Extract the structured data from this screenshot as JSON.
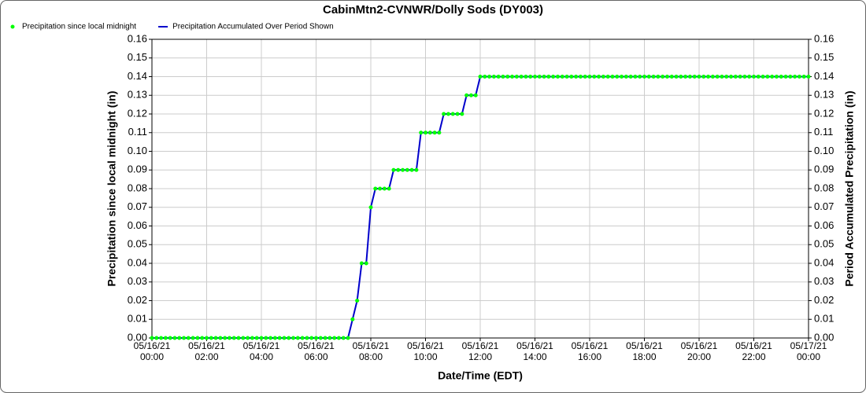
{
  "chart_data": {
    "type": "line",
    "title": "CabinMtn2-CVNWR/Dolly Sods (DY003)",
    "xlabel": "Date/Time (EDT)",
    "ylabel": "Precipitation since local midnight (in)",
    "y2label": "Period Accumulated Precipitation (in)",
    "xlim": [
      "05/16/21 00:00",
      "05/17/21 00:00"
    ],
    "xticks": [
      {
        "value": "05/16/21 00:00",
        "label": "05/16/21\n00:00"
      },
      {
        "value": "05/16/21 02:00",
        "label": "05/16/21\n02:00"
      },
      {
        "value": "05/16/21 04:00",
        "label": "05/16/21\n04:00"
      },
      {
        "value": "05/16/21 06:00",
        "label": "05/16/21\n06:00"
      },
      {
        "value": "05/16/21 08:00",
        "label": "05/16/21\n08:00"
      },
      {
        "value": "05/16/21 10:00",
        "label": "05/16/21\n10:00"
      },
      {
        "value": "05/16/21 12:00",
        "label": "05/16/21\n12:00"
      },
      {
        "value": "05/16/21 14:00",
        "label": "05/16/21\n14:00"
      },
      {
        "value": "05/16/21 16:00",
        "label": "05/16/21\n16:00"
      },
      {
        "value": "05/16/21 18:00",
        "label": "05/16/21\n18:00"
      },
      {
        "value": "05/16/21 20:00",
        "label": "05/16/21\n20:00"
      },
      {
        "value": "05/16/21 22:00",
        "label": "05/16/21\n22:00"
      },
      {
        "value": "05/17/21 00:00",
        "label": "05/17/21\n00:00"
      }
    ],
    "ylim": [
      0,
      0.16
    ],
    "yticks": [
      {
        "value": 0,
        "label": "0.00"
      },
      {
        "value": 0.01,
        "label": "0.01"
      },
      {
        "value": 0.02,
        "label": "0.02"
      },
      {
        "value": 0.03,
        "label": "0.03"
      },
      {
        "value": 0.04,
        "label": "0.04"
      },
      {
        "value": 0.05,
        "label": "0.05"
      },
      {
        "value": 0.06,
        "label": "0.06"
      },
      {
        "value": 0.07,
        "label": "0.07"
      },
      {
        "value": 0.08,
        "label": "0.08"
      },
      {
        "value": 0.09,
        "label": "0.09"
      },
      {
        "value": 0.1,
        "label": "0.10"
      },
      {
        "value": 0.11,
        "label": "0.11"
      },
      {
        "value": 0.12,
        "label": "0.12"
      },
      {
        "value": 0.13,
        "label": "0.13"
      },
      {
        "value": 0.14,
        "label": "0.14"
      },
      {
        "value": 0.15,
        "label": "0.15"
      },
      {
        "value": 0.16,
        "label": "0.16"
      }
    ],
    "y2lim": [
      0,
      0.16
    ],
    "y2ticks": [
      {
        "value": 0,
        "label": "0.00"
      },
      {
        "value": 0.01,
        "label": "0.01"
      },
      {
        "value": 0.02,
        "label": "0.02"
      },
      {
        "value": 0.03,
        "label": "0.03"
      },
      {
        "value": 0.04,
        "label": "0.04"
      },
      {
        "value": 0.05,
        "label": "0.05"
      },
      {
        "value": 0.06,
        "label": "0.06"
      },
      {
        "value": 0.07,
        "label": "0.07"
      },
      {
        "value": 0.08,
        "label": "0.08"
      },
      {
        "value": 0.09,
        "label": "0.09"
      },
      {
        "value": 0.1,
        "label": "0.10"
      },
      {
        "value": 0.11,
        "label": "0.11"
      },
      {
        "value": 0.12,
        "label": "0.12"
      },
      {
        "value": 0.13,
        "label": "0.13"
      },
      {
        "value": 0.14,
        "label": "0.14"
      },
      {
        "value": 0.15,
        "label": "0.15"
      },
      {
        "value": 0.16,
        "label": "0.16"
      }
    ],
    "grid": true,
    "x": [
      "05/16/21 00:00",
      "05/16/21 00:10",
      "05/16/21 00:20",
      "05/16/21 00:30",
      "05/16/21 00:40",
      "05/16/21 00:50",
      "05/16/21 01:00",
      "05/16/21 01:10",
      "05/16/21 01:20",
      "05/16/21 01:30",
      "05/16/21 01:40",
      "05/16/21 01:50",
      "05/16/21 02:00",
      "05/16/21 02:10",
      "05/16/21 02:20",
      "05/16/21 02:30",
      "05/16/21 02:40",
      "05/16/21 02:50",
      "05/16/21 03:00",
      "05/16/21 03:10",
      "05/16/21 03:20",
      "05/16/21 03:30",
      "05/16/21 03:40",
      "05/16/21 03:50",
      "05/16/21 04:00",
      "05/16/21 04:10",
      "05/16/21 04:20",
      "05/16/21 04:30",
      "05/16/21 04:40",
      "05/16/21 04:50",
      "05/16/21 05:00",
      "05/16/21 05:10",
      "05/16/21 05:20",
      "05/16/21 05:30",
      "05/16/21 05:40",
      "05/16/21 05:50",
      "05/16/21 06:00",
      "05/16/21 06:10",
      "05/16/21 06:20",
      "05/16/21 06:30",
      "05/16/21 06:40",
      "05/16/21 06:50",
      "05/16/21 07:00",
      "05/16/21 07:10",
      "05/16/21 07:20",
      "05/16/21 07:30",
      "05/16/21 07:40",
      "05/16/21 07:50",
      "05/16/21 08:00",
      "05/16/21 08:10",
      "05/16/21 08:20",
      "05/16/21 08:30",
      "05/16/21 08:40",
      "05/16/21 08:50",
      "05/16/21 09:00",
      "05/16/21 09:10",
      "05/16/21 09:20",
      "05/16/21 09:30",
      "05/16/21 09:40",
      "05/16/21 09:50",
      "05/16/21 10:00",
      "05/16/21 10:10",
      "05/16/21 10:20",
      "05/16/21 10:30",
      "05/16/21 10:40",
      "05/16/21 10:50",
      "05/16/21 11:00",
      "05/16/21 11:10",
      "05/16/21 11:20",
      "05/16/21 11:30",
      "05/16/21 11:40",
      "05/16/21 11:50",
      "05/16/21 12:00",
      "05/16/21 12:10",
      "05/16/21 12:20",
      "05/16/21 12:30",
      "05/16/21 12:40",
      "05/16/21 12:50",
      "05/16/21 13:00",
      "05/16/21 13:10",
      "05/16/21 13:20",
      "05/16/21 13:30",
      "05/16/21 13:40",
      "05/16/21 13:50",
      "05/16/21 14:00",
      "05/16/21 14:10",
      "05/16/21 14:20",
      "05/16/21 14:30",
      "05/16/21 14:40",
      "05/16/21 14:50",
      "05/16/21 15:00",
      "05/16/21 15:10",
      "05/16/21 15:20",
      "05/16/21 15:30",
      "05/16/21 15:40",
      "05/16/21 15:50",
      "05/16/21 16:00",
      "05/16/21 16:10",
      "05/16/21 16:20",
      "05/16/21 16:30",
      "05/16/21 16:40",
      "05/16/21 16:50",
      "05/16/21 17:00",
      "05/16/21 17:10",
      "05/16/21 17:20",
      "05/16/21 17:30",
      "05/16/21 17:40",
      "05/16/21 17:50",
      "05/16/21 18:00",
      "05/16/21 18:10",
      "05/16/21 18:20",
      "05/16/21 18:30",
      "05/16/21 18:40",
      "05/16/21 18:50",
      "05/16/21 19:00",
      "05/16/21 19:10",
      "05/16/21 19:20",
      "05/16/21 19:30",
      "05/16/21 19:40",
      "05/16/21 19:50",
      "05/16/21 20:00",
      "05/16/21 20:10",
      "05/16/21 20:20",
      "05/16/21 20:30",
      "05/16/21 20:40",
      "05/16/21 20:50",
      "05/16/21 21:00",
      "05/16/21 21:10",
      "05/16/21 21:20",
      "05/16/21 21:30",
      "05/16/21 21:40",
      "05/16/21 21:50",
      "05/16/21 22:00",
      "05/16/21 22:10",
      "05/16/21 22:20",
      "05/16/21 22:30",
      "05/16/21 22:40",
      "05/16/21 22:50",
      "05/16/21 23:00",
      "05/16/21 23:10",
      "05/16/21 23:20",
      "05/16/21 23:30",
      "05/16/21 23:40",
      "05/16/21 23:50",
      "05/17/21 00:00"
    ],
    "series": [
      {
        "name": "Precipitation since local midnight",
        "color": "#00ff00",
        "marker": "dot",
        "values": [
          0,
          0,
          0,
          0,
          0,
          0,
          0,
          0,
          0,
          0,
          0,
          0,
          0,
          0,
          0,
          0,
          0,
          0,
          0,
          0,
          0,
          0,
          0,
          0,
          0,
          0,
          0,
          0,
          0,
          0,
          0,
          0,
          0,
          0,
          0,
          0,
          0,
          0,
          0,
          0,
          0,
          0,
          0,
          0,
          0.01,
          0.02,
          0.04,
          0.04,
          0.07,
          0.08,
          0.08,
          0.08,
          0.08,
          0.09,
          0.09,
          0.09,
          0.09,
          0.09,
          0.09,
          0.11,
          0.11,
          0.11,
          0.11,
          0.11,
          0.12,
          0.12,
          0.12,
          0.12,
          0.12,
          0.13,
          0.13,
          0.13,
          0.14,
          0.14,
          0.14,
          0.14,
          0.14,
          0.14,
          0.14,
          0.14,
          0.14,
          0.14,
          0.14,
          0.14,
          0.14,
          0.14,
          0.14,
          0.14,
          0.14,
          0.14,
          0.14,
          0.14,
          0.14,
          0.14,
          0.14,
          0.14,
          0.14,
          0.14,
          0.14,
          0.14,
          0.14,
          0.14,
          0.14,
          0.14,
          0.14,
          0.14,
          0.14,
          0.14,
          0.14,
          0.14,
          0.14,
          0.14,
          0.14,
          0.14,
          0.14,
          0.14,
          0.14,
          0.14,
          0.14,
          0.14,
          0.14,
          0.14,
          0.14,
          0.14,
          0.14,
          0.14,
          0.14,
          0.14,
          0.14,
          0.14,
          0.14,
          0.14,
          0.14,
          0.14,
          0.14,
          0.14,
          0.14,
          0.14,
          0.14,
          0.14,
          0.14,
          0.14,
          0.14,
          0.14,
          0.14
        ]
      },
      {
        "name": "Precipitation Accumulated Over Period Shown",
        "color": "#0000cc",
        "marker": "line",
        "axis": "y2",
        "values": [
          0,
          0,
          0,
          0,
          0,
          0,
          0,
          0,
          0,
          0,
          0,
          0,
          0,
          0,
          0,
          0,
          0,
          0,
          0,
          0,
          0,
          0,
          0,
          0,
          0,
          0,
          0,
          0,
          0,
          0,
          0,
          0,
          0,
          0,
          0,
          0,
          0,
          0,
          0,
          0,
          0,
          0,
          0,
          0,
          0.01,
          0.02,
          0.04,
          0.04,
          0.07,
          0.08,
          0.08,
          0.08,
          0.08,
          0.09,
          0.09,
          0.09,
          0.09,
          0.09,
          0.09,
          0.11,
          0.11,
          0.11,
          0.11,
          0.11,
          0.12,
          0.12,
          0.12,
          0.12,
          0.12,
          0.13,
          0.13,
          0.13,
          0.14,
          0.14,
          0.14,
          0.14,
          0.14,
          0.14,
          0.14,
          0.14,
          0.14,
          0.14,
          0.14,
          0.14,
          0.14,
          0.14,
          0.14,
          0.14,
          0.14,
          0.14,
          0.14,
          0.14,
          0.14,
          0.14,
          0.14,
          0.14,
          0.14,
          0.14,
          0.14,
          0.14,
          0.14,
          0.14,
          0.14,
          0.14,
          0.14,
          0.14,
          0.14,
          0.14,
          0.14,
          0.14,
          0.14,
          0.14,
          0.14,
          0.14,
          0.14,
          0.14,
          0.14,
          0.14,
          0.14,
          0.14,
          0.14,
          0.14,
          0.14,
          0.14,
          0.14,
          0.14,
          0.14,
          0.14,
          0.14,
          0.14,
          0.14,
          0.14,
          0.14,
          0.14,
          0.14,
          0.14,
          0.14,
          0.14,
          0.14,
          0.14,
          0.14,
          0.14,
          0.14,
          0.14,
          0.14
        ]
      }
    ]
  }
}
